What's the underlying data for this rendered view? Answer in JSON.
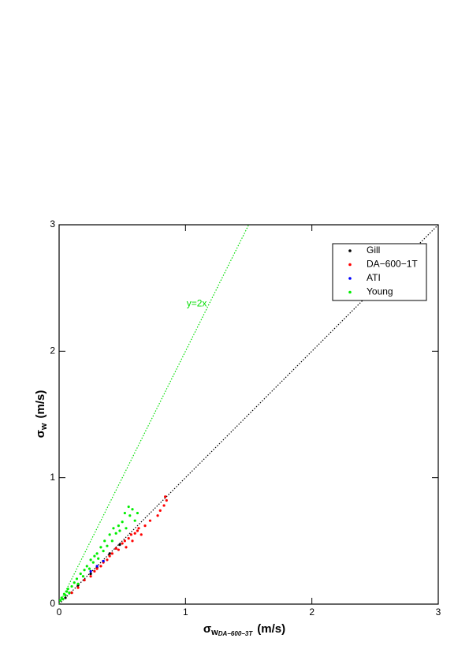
{
  "chart_data": {
    "type": "scatter",
    "x_label": {
      "symbol": "σ",
      "sub": "w",
      "subsub": "DA−600−3T",
      "unit": "(m/s)"
    },
    "y_label": {
      "symbol": "σ",
      "sub": "w",
      "unit": "(m/s)"
    },
    "xlim": [
      0,
      3
    ],
    "ylim": [
      0,
      3
    ],
    "xticks": [
      0,
      1,
      2,
      3
    ],
    "yticks": [
      0,
      1,
      2,
      3
    ],
    "grid": false,
    "legend": "upper right",
    "reference_lines": [
      {
        "slope": 1,
        "color": "#000000"
      },
      {
        "slope": 2,
        "color": "#00dd00",
        "label": "y=2x"
      }
    ],
    "series": [
      {
        "name": "Gill",
        "color": "#000000",
        "x": [
          0.05,
          0.1,
          0.15,
          0.2,
          0.25,
          0.3,
          0.35,
          0.4,
          0.45,
          0.48
        ],
        "values": [
          0.05,
          0.09,
          0.15,
          0.19,
          0.24,
          0.29,
          0.34,
          0.4,
          0.44,
          0.47
        ]
      },
      {
        "name": "DA−600−1T",
        "color": "#ff0000",
        "x": [
          0.1,
          0.15,
          0.2,
          0.25,
          0.28,
          0.3,
          0.33,
          0.35,
          0.38,
          0.4,
          0.42,
          0.45,
          0.47,
          0.5,
          0.52,
          0.53,
          0.55,
          0.57,
          0.58,
          0.6,
          0.62,
          0.63,
          0.65,
          0.68,
          0.72,
          0.78,
          0.8,
          0.83,
          0.85,
          0.84
        ],
        "values": [
          0.09,
          0.13,
          0.19,
          0.22,
          0.26,
          0.28,
          0.3,
          0.33,
          0.35,
          0.38,
          0.4,
          0.44,
          0.43,
          0.48,
          0.5,
          0.45,
          0.52,
          0.55,
          0.5,
          0.56,
          0.58,
          0.6,
          0.55,
          0.62,
          0.66,
          0.7,
          0.74,
          0.78,
          0.82,
          0.85
        ]
      },
      {
        "name": "ATI",
        "color": "#0000ff",
        "x": [
          0.25,
          0.3,
          0.35
        ],
        "values": [
          0.26,
          0.3,
          0.34
        ]
      },
      {
        "name": "Young",
        "color": "#00ee00",
        "x": [
          0.01,
          0.02,
          0.03,
          0.04,
          0.05,
          0.06,
          0.07,
          0.08,
          0.1,
          0.12,
          0.14,
          0.15,
          0.17,
          0.19,
          0.2,
          0.22,
          0.24,
          0.25,
          0.27,
          0.28,
          0.3,
          0.31,
          0.33,
          0.35,
          0.36,
          0.38,
          0.4,
          0.42,
          0.43,
          0.45,
          0.47,
          0.5,
          0.52,
          0.53,
          0.55,
          0.56,
          0.58,
          0.6,
          0.62,
          0.48
        ],
        "values": [
          0.03,
          0.05,
          0.04,
          0.08,
          0.07,
          0.1,
          0.12,
          0.09,
          0.14,
          0.17,
          0.2,
          0.16,
          0.24,
          0.22,
          0.27,
          0.3,
          0.28,
          0.35,
          0.33,
          0.38,
          0.4,
          0.36,
          0.45,
          0.42,
          0.5,
          0.46,
          0.55,
          0.5,
          0.6,
          0.56,
          0.62,
          0.65,
          0.72,
          0.6,
          0.77,
          0.7,
          0.75,
          0.66,
          0.72,
          0.58
        ]
      }
    ]
  }
}
